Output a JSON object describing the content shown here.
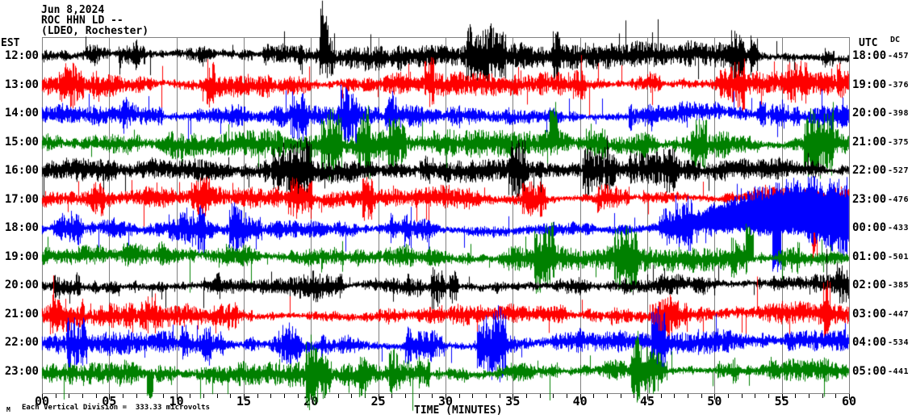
{
  "header": {
    "date": "Jun 8,2024",
    "station": "ROC HHN LD --",
    "network": "(LDEO, Rochester)"
  },
  "axes": {
    "left_label": "EST",
    "right_label": "UTC",
    "dc_label": "DC",
    "x_label": "TIME (MINUTES)",
    "x_tick_labels": [
      "00",
      "05",
      "10",
      "15",
      "20",
      "25",
      "30",
      "35",
      "40",
      "45",
      "50",
      "55",
      "60"
    ],
    "x_minor_tick_minutes": 1,
    "x_major_tick_minutes": 5
  },
  "footer": {
    "logo_mark": "M",
    "scale_note": "Each Vertical Division =  333.33 microvolts"
  },
  "colors": {
    "black": "#000000",
    "red": "#ff0000",
    "blue": "#0000ff",
    "green": "#008000",
    "grid": "#808080",
    "text": "#000000",
    "background": "#ffffff"
  },
  "chart_data": {
    "type": "line",
    "subtype": "helicorder-seismogram",
    "title": "ROC HHN LD -- (LDEO, Rochester) Jun 8,2024",
    "xlabel": "TIME (MINUTES)",
    "x_range_minutes": [
      0,
      60
    ],
    "minutes_per_row": 60,
    "vertical_division_microvolts": 333.33,
    "rows": [
      {
        "est": "12:00",
        "utc": "18:00",
        "dc": -457,
        "color": "black",
        "gain": 1.15
      },
      {
        "est": "13:00",
        "utc": "19:00",
        "dc": -376,
        "color": "red",
        "gain": 1.05
      },
      {
        "est": "14:00",
        "utc": "20:00",
        "dc": -398,
        "color": "blue",
        "gain": 1.0
      },
      {
        "est": "15:00",
        "utc": "21:00",
        "dc": -375,
        "color": "green",
        "gain": 1.25
      },
      {
        "est": "16:00",
        "utc": "22:00",
        "dc": -527,
        "color": "black",
        "gain": 1.0
      },
      {
        "est": "17:00",
        "utc": "23:00",
        "dc": -476,
        "color": "red",
        "gain": 0.95
      },
      {
        "est": "18:00",
        "utc": "00:00",
        "dc": -433,
        "color": "blue",
        "gain": 1.0
      },
      {
        "est": "19:00",
        "utc": "01:00",
        "dc": -501,
        "color": "green",
        "gain": 1.1
      },
      {
        "est": "20:00",
        "utc": "02:00",
        "dc": -385,
        "color": "black",
        "gain": 1.05
      },
      {
        "est": "21:00",
        "utc": "03:00",
        "dc": -447,
        "color": "red",
        "gain": 1.0
      },
      {
        "est": "22:00",
        "utc": "04:00",
        "dc": -534,
        "color": "blue",
        "gain": 1.1
      },
      {
        "est": "23:00",
        "utc": "05:00",
        "dc": -441,
        "color": "green",
        "gain": 1.1
      }
    ],
    "events": [
      {
        "row_index": 0,
        "minute": 21.0,
        "kind": "spike-up",
        "amplitude": 40,
        "width": 0.25
      },
      {
        "row_index": 5,
        "minute": 57.4,
        "kind": "spike-down",
        "amplitude": 80,
        "width": 0.2
      },
      {
        "row_index": 6,
        "minute": 54.6,
        "kind": "spike-down",
        "amplitude": 48,
        "width": 0.35
      },
      {
        "row_index": 6,
        "minute": 55.8,
        "kind": "bump-up",
        "amplitude": 46,
        "width": 3.5
      },
      {
        "row_index": 7,
        "minute": 52.6,
        "kind": "spike-up",
        "amplitude": 40,
        "width": 0.3
      },
      {
        "row_index": 3,
        "minute": 38.0,
        "kind": "spike-up",
        "amplitude": 34,
        "width": 0.3
      },
      {
        "row_index": 11,
        "minute": 8.0,
        "kind": "spike-down",
        "amplitude": 32,
        "width": 0.25
      }
    ],
    "layout": {
      "grid": true,
      "gridline_interval_minutes": 5,
      "legend": false
    }
  }
}
